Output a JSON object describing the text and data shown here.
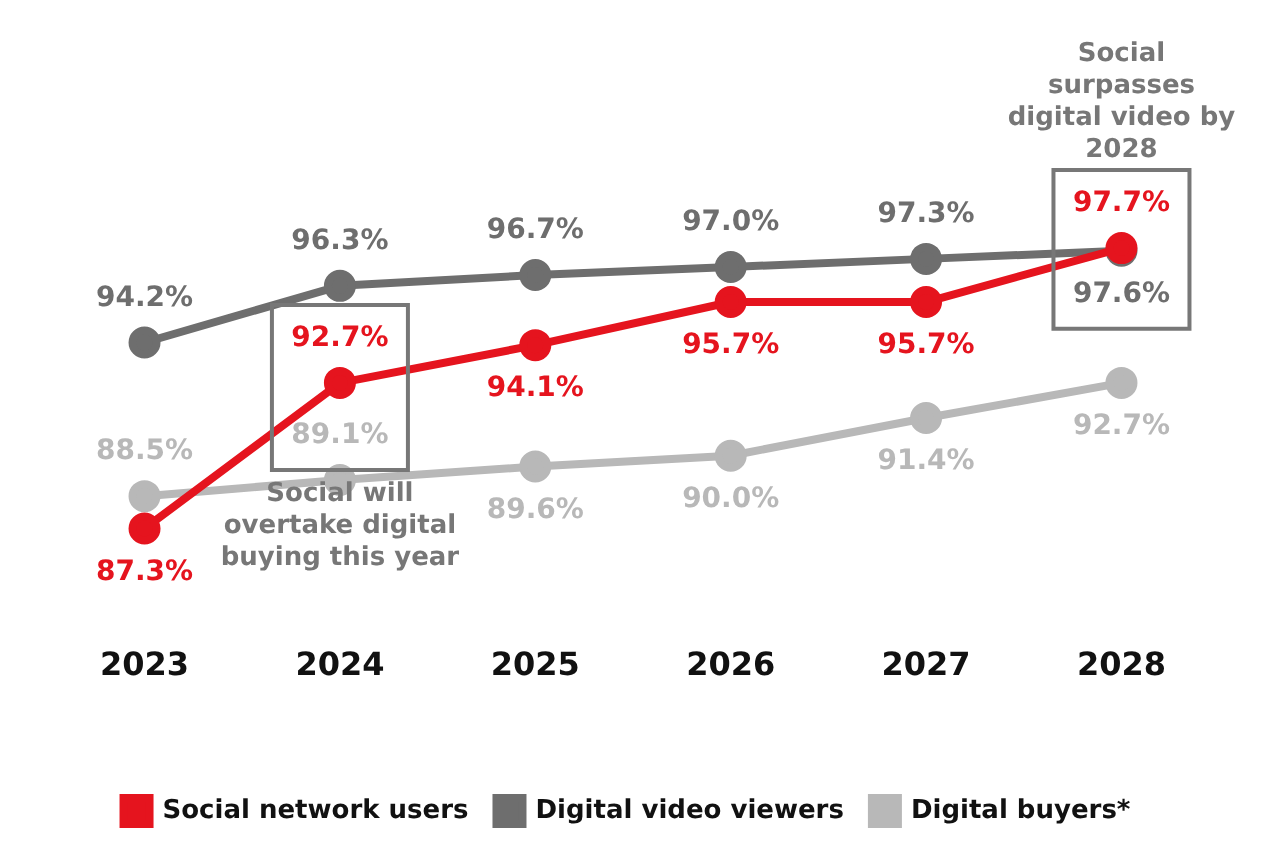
{
  "chart_data": {
    "type": "line",
    "categories": [
      "2023",
      "2024",
      "2025",
      "2026",
      "2027",
      "2028"
    ],
    "series": [
      {
        "name": "Social network users",
        "color": "#e5141e",
        "values": [
          87.3,
          92.7,
          94.1,
          95.7,
          95.7,
          97.7
        ],
        "value_labels": [
          "87.3%",
          "92.7%",
          "94.1%",
          "95.7%",
          "95.7%",
          "97.7%"
        ]
      },
      {
        "name": "Digital video viewers",
        "color": "#6e6e6e",
        "values": [
          94.2,
          96.3,
          96.7,
          97.0,
          97.3,
          97.6
        ],
        "value_labels": [
          "94.2%",
          "96.3%",
          "96.7%",
          "97.0%",
          "97.3%",
          "97.6%"
        ]
      },
      {
        "name": "Digital buyers*",
        "color": "#b8b8b8",
        "values": [
          88.5,
          89.1,
          89.6,
          90.0,
          91.4,
          92.7
        ],
        "value_labels": [
          "88.5%",
          "89.1%",
          "89.6%",
          "90.0%",
          "91.4%",
          "92.7%"
        ]
      }
    ],
    "tick_labels": "x",
    "marker": "circle",
    "legend": "bottom",
    "grid": false,
    "annotations": [
      "Social will overtake digital buying this year",
      "Social surpasses digital video by 2028"
    ]
  }
}
